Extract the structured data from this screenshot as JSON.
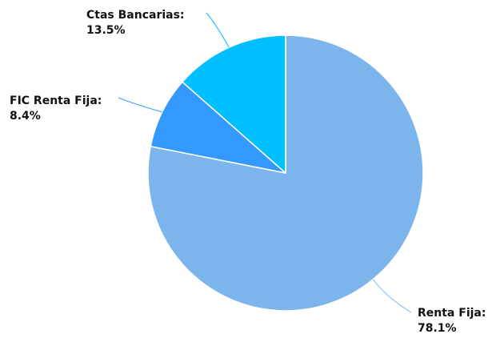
{
  "chart_data": {
    "type": "pie",
    "title": "",
    "slices": [
      {
        "name": "Renta Fija",
        "value": 78.1,
        "label": "Renta Fija:",
        "value_label": "78.1%",
        "color": "#7cb5ec",
        "connector_color": "#7cb5ec"
      },
      {
        "name": "FIC Renta Fija",
        "value": 8.4,
        "label": "FIC Renta Fija:",
        "value_label": "8.4%",
        "color": "#3399ff",
        "connector_color": "#3399ff"
      },
      {
        "name": "Ctas Bancarias",
        "value": 13.5,
        "label": "Ctas Bancarias:",
        "value_label": "13.5%",
        "color": "#00bfff",
        "connector_color": "#00bfff"
      }
    ],
    "start_angle_deg": 0,
    "direction": "clockwise",
    "legend": "none",
    "border_color": "#ffffff"
  }
}
